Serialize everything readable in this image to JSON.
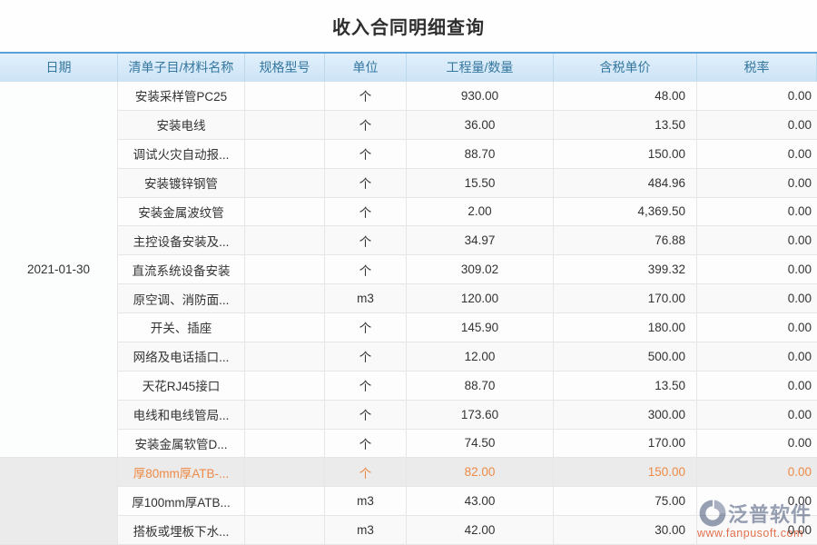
{
  "title": "收入合同明细查询",
  "columns": [
    "日期",
    "清单子目/材料名称",
    "规格型号",
    "单位",
    "工程量/数量",
    "含税单价",
    "税率"
  ],
  "date_groups": [
    {
      "start": 0,
      "span": 13,
      "date": "2021-01-30",
      "highlighted": false
    },
    {
      "start": 13,
      "span": 3,
      "date": "",
      "highlighted": true
    }
  ],
  "rows": [
    {
      "name": "安装采样管PC25",
      "spec": "",
      "unit": "个",
      "qty": "930.00",
      "price": "48.00",
      "rate": "0.00",
      "highlighted": false
    },
    {
      "name": "安装电线",
      "spec": "",
      "unit": "个",
      "qty": "36.00",
      "price": "13.50",
      "rate": "0.00",
      "highlighted": false
    },
    {
      "name": "调试火灾自动报...",
      "spec": "",
      "unit": "个",
      "qty": "88.70",
      "price": "150.00",
      "rate": "0.00",
      "highlighted": false
    },
    {
      "name": "安装镀锌钢管",
      "spec": "",
      "unit": "个",
      "qty": "15.50",
      "price": "484.96",
      "rate": "0.00",
      "highlighted": false
    },
    {
      "name": "安装金属波纹管",
      "spec": "",
      "unit": "个",
      "qty": "2.00",
      "price": "4,369.50",
      "rate": "0.00",
      "highlighted": false
    },
    {
      "name": "主控设备安装及...",
      "spec": "",
      "unit": "个",
      "qty": "34.97",
      "price": "76.88",
      "rate": "0.00",
      "highlighted": false
    },
    {
      "name": "直流系统设备安装",
      "spec": "",
      "unit": "个",
      "qty": "309.02",
      "price": "399.32",
      "rate": "0.00",
      "highlighted": false
    },
    {
      "name": "原空调、消防面...",
      "spec": "",
      "unit": "m3",
      "qty": "120.00",
      "price": "170.00",
      "rate": "0.00",
      "highlighted": false
    },
    {
      "name": "开关、插座",
      "spec": "",
      "unit": "个",
      "qty": "145.90",
      "price": "180.00",
      "rate": "0.00",
      "highlighted": false
    },
    {
      "name": "网络及电话插口...",
      "spec": "",
      "unit": "个",
      "qty": "12.00",
      "price": "500.00",
      "rate": "0.00",
      "highlighted": false
    },
    {
      "name": "天花RJ45接口",
      "spec": "",
      "unit": "个",
      "qty": "88.70",
      "price": "13.50",
      "rate": "0.00",
      "highlighted": false
    },
    {
      "name": "电线和电线管局...",
      "spec": "",
      "unit": "个",
      "qty": "173.60",
      "price": "300.00",
      "rate": "0.00",
      "highlighted": false
    },
    {
      "name": "安装金属软管D...",
      "spec": "",
      "unit": "个",
      "qty": "74.50",
      "price": "170.00",
      "rate": "0.00",
      "highlighted": false
    },
    {
      "name": "厚80mm厚ATB-...",
      "spec": "",
      "unit": "个",
      "qty": "82.00",
      "price": "150.00",
      "rate": "0.00",
      "highlighted": true
    },
    {
      "name": "厚100mm厚ATB...",
      "spec": "",
      "unit": "m3",
      "qty": "43.00",
      "price": "75.00",
      "rate": "0.00",
      "highlighted": false
    },
    {
      "name": "搭板或埋板下水...",
      "spec": "",
      "unit": "m3",
      "qty": "42.00",
      "price": "30.00",
      "rate": "0.00",
      "highlighted": false
    }
  ],
  "watermark": {
    "brand": "泛普软件",
    "url": "www.fanpusoft.com"
  },
  "colors": {
    "header_border_top": "#58a0d6",
    "header_bg": "#cde4f6",
    "header_text": "#35779f",
    "highlight_bg": "#ebebeb",
    "highlight_text": "#ed8a45",
    "watermark_brand": "#98a1b4",
    "watermark_url": "#e97450"
  }
}
